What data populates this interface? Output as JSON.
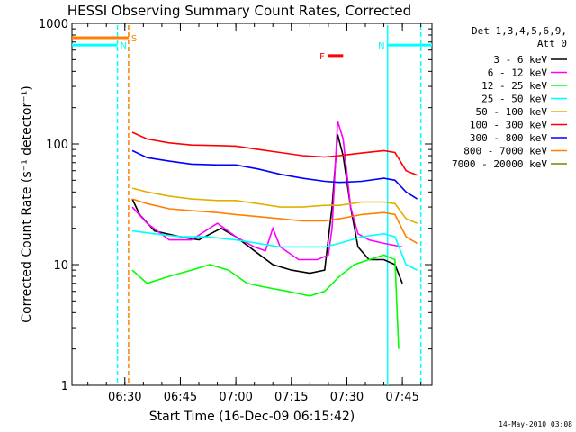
{
  "chart_data": {
    "type": "line",
    "title": "HESSI Observing Summary Count Rates, Corrected",
    "xlabel": "Start Time (16-Dec-09 06:15:42)",
    "ylabel": "Corrected Count Rate (s⁻¹ detector⁻¹)",
    "x_range": [
      "06:15:42",
      "07:53:00"
    ],
    "x_ticks": [
      "06:30",
      "06:45",
      "07:00",
      "07:15",
      "07:30",
      "07:45"
    ],
    "y_scale": "log",
    "ylim": [
      1,
      1000
    ],
    "y_ticks": [
      "1",
      "10",
      "100",
      "1000"
    ],
    "grid": false,
    "legend_placement": "top-right",
    "legend_header": [
      "Det 1,3,4,5,6,9,",
      "Att 0"
    ],
    "footer_date": "14-May-2010 03:08",
    "series": [
      {
        "name": "3 - 6 keV",
        "color": "#000000",
        "points": [
          [
            "06:32",
            35
          ],
          [
            "06:34",
            26
          ],
          [
            "06:38",
            19
          ],
          [
            "06:45",
            17
          ],
          [
            "06:50",
            16
          ],
          [
            "06:56",
            20
          ],
          [
            "07:00",
            17
          ],
          [
            "07:05",
            13
          ],
          [
            "07:10",
            10
          ],
          [
            "07:15",
            9
          ],
          [
            "07:20",
            8.5
          ],
          [
            "07:24",
            9
          ],
          [
            "07:26",
            30
          ],
          [
            "07:27.5",
            120
          ],
          [
            "07:29",
            80
          ],
          [
            "07:31",
            30
          ],
          [
            "07:33",
            14
          ],
          [
            "07:36",
            11
          ],
          [
            "07:40",
            11
          ],
          [
            "07:43",
            10
          ],
          [
            "07:45",
            7
          ]
        ]
      },
      {
        "name": "6 - 12 keV",
        "color": "#ff00ff",
        "points": [
          [
            "06:32",
            30
          ],
          [
            "06:36",
            22
          ],
          [
            "06:42",
            16
          ],
          [
            "06:48",
            16
          ],
          [
            "06:55",
            22
          ],
          [
            "07:00",
            17
          ],
          [
            "07:05",
            14
          ],
          [
            "07:08",
            13
          ],
          [
            "07:10",
            20
          ],
          [
            "07:12",
            14
          ],
          [
            "07:17",
            11
          ],
          [
            "07:22",
            11
          ],
          [
            "07:25",
            12
          ],
          [
            "07:26",
            20
          ],
          [
            "07:27.5",
            155
          ],
          [
            "07:29",
            110
          ],
          [
            "07:31",
            30
          ],
          [
            "07:33",
            18
          ],
          [
            "07:36",
            16
          ],
          [
            "07:40",
            15
          ],
          [
            "07:45",
            14
          ]
        ]
      },
      {
        "name": "12 - 25 keV",
        "color": "#00ff00",
        "points": [
          [
            "06:32",
            9
          ],
          [
            "06:36",
            7
          ],
          [
            "06:42",
            8
          ],
          [
            "06:48",
            9
          ],
          [
            "06:53",
            10
          ],
          [
            "06:58",
            9
          ],
          [
            "07:03",
            7
          ],
          [
            "07:08",
            6.5
          ],
          [
            "07:14",
            6
          ],
          [
            "07:20",
            5.5
          ],
          [
            "07:24",
            6
          ],
          [
            "07:28",
            8
          ],
          [
            "07:32",
            10
          ],
          [
            "07:36",
            11
          ],
          [
            "07:40",
            12
          ],
          [
            "07:43",
            11
          ],
          [
            "07:44",
            2
          ]
        ]
      },
      {
        "name": "25 - 50 keV",
        "color": "#00ffff",
        "points": [
          [
            "06:32",
            19
          ],
          [
            "06:38",
            18
          ],
          [
            "06:45",
            17
          ],
          [
            "06:52",
            17
          ],
          [
            "07:00",
            16
          ],
          [
            "07:06",
            15
          ],
          [
            "07:12",
            14
          ],
          [
            "07:18",
            14
          ],
          [
            "07:24",
            14
          ],
          [
            "07:28",
            15
          ],
          [
            "07:34",
            17
          ],
          [
            "07:40",
            18
          ],
          [
            "07:43",
            17
          ],
          [
            "07:46",
            10
          ],
          [
            "07:49",
            9
          ]
        ]
      },
      {
        "name": "50 - 100 keV",
        "color": "#e0b000",
        "points": [
          [
            "06:32",
            43
          ],
          [
            "06:36",
            40
          ],
          [
            "06:42",
            37
          ],
          [
            "06:48",
            35
          ],
          [
            "06:55",
            34
          ],
          [
            "07:00",
            34
          ],
          [
            "07:06",
            32
          ],
          [
            "07:12",
            30
          ],
          [
            "07:18",
            30
          ],
          [
            "07:24",
            31
          ],
          [
            "07:28",
            31
          ],
          [
            "07:34",
            33
          ],
          [
            "07:40",
            33
          ],
          [
            "07:43",
            32
          ],
          [
            "07:46",
            24
          ],
          [
            "07:49",
            22
          ]
        ]
      },
      {
        "name": "100 - 300 keV",
        "color": "#ff0000",
        "points": [
          [
            "06:32",
            125
          ],
          [
            "06:36",
            110
          ],
          [
            "06:42",
            102
          ],
          [
            "06:48",
            98
          ],
          [
            "06:55",
            97
          ],
          [
            "07:00",
            96
          ],
          [
            "07:06",
            90
          ],
          [
            "07:12",
            85
          ],
          [
            "07:18",
            80
          ],
          [
            "07:24",
            78
          ],
          [
            "07:28",
            80
          ],
          [
            "07:34",
            84
          ],
          [
            "07:40",
            88
          ],
          [
            "07:43",
            85
          ],
          [
            "07:46",
            60
          ],
          [
            "07:49",
            55
          ]
        ]
      },
      {
        "name": "300 - 800 keV",
        "color": "#0000ff",
        "points": [
          [
            "06:32",
            88
          ],
          [
            "06:36",
            77
          ],
          [
            "06:42",
            72
          ],
          [
            "06:48",
            68
          ],
          [
            "06:55",
            67
          ],
          [
            "07:00",
            67
          ],
          [
            "07:06",
            62
          ],
          [
            "07:12",
            56
          ],
          [
            "07:18",
            52
          ],
          [
            "07:24",
            49
          ],
          [
            "07:28",
            48
          ],
          [
            "07:34",
            49
          ],
          [
            "07:40",
            52
          ],
          [
            "07:43",
            50
          ],
          [
            "07:46",
            40
          ],
          [
            "07:49",
            35
          ]
        ]
      },
      {
        "name": "800 - 7000 keV",
        "color": "#ff8000",
        "points": [
          [
            "06:32",
            35
          ],
          [
            "06:36",
            32
          ],
          [
            "06:42",
            29
          ],
          [
            "06:48",
            28
          ],
          [
            "06:55",
            27
          ],
          [
            "07:00",
            26
          ],
          [
            "07:06",
            25
          ],
          [
            "07:12",
            24
          ],
          [
            "07:18",
            23
          ],
          [
            "07:24",
            23
          ],
          [
            "07:28",
            24
          ],
          [
            "07:34",
            26
          ],
          [
            "07:40",
            27
          ],
          [
            "07:43",
            26
          ],
          [
            "07:46",
            17
          ],
          [
            "07:49",
            15
          ]
        ]
      },
      {
        "name": "7000 - 20000 keV",
        "color": "#808000",
        "points": []
      }
    ],
    "annotations": [
      {
        "label": "S",
        "color": "#ff8000",
        "x_start": "06:15:42",
        "x_end": "06:31",
        "y": 760
      },
      {
        "label": "N",
        "color": "#00ffff",
        "x_start": "06:15:42",
        "x_end": "06:28",
        "y": 660
      },
      {
        "label": "N",
        "color": "#00ffff",
        "x_start": "07:41",
        "x_end": "07:53",
        "y": 660
      },
      {
        "label": "F",
        "color": "#ff0000",
        "x_start": "07:25",
        "x_end": "07:29",
        "y": 540
      }
    ],
    "vertical_markers": [
      {
        "x": "06:28",
        "color": "#00ffff",
        "style": "dashed"
      },
      {
        "x": "06:31",
        "color": "#ff8000",
        "style": "dashed"
      },
      {
        "x": "07:41",
        "color": "#00ffff",
        "style": "solid"
      },
      {
        "x": "07:50",
        "color": "#00ffff",
        "style": "dashed"
      }
    ]
  }
}
